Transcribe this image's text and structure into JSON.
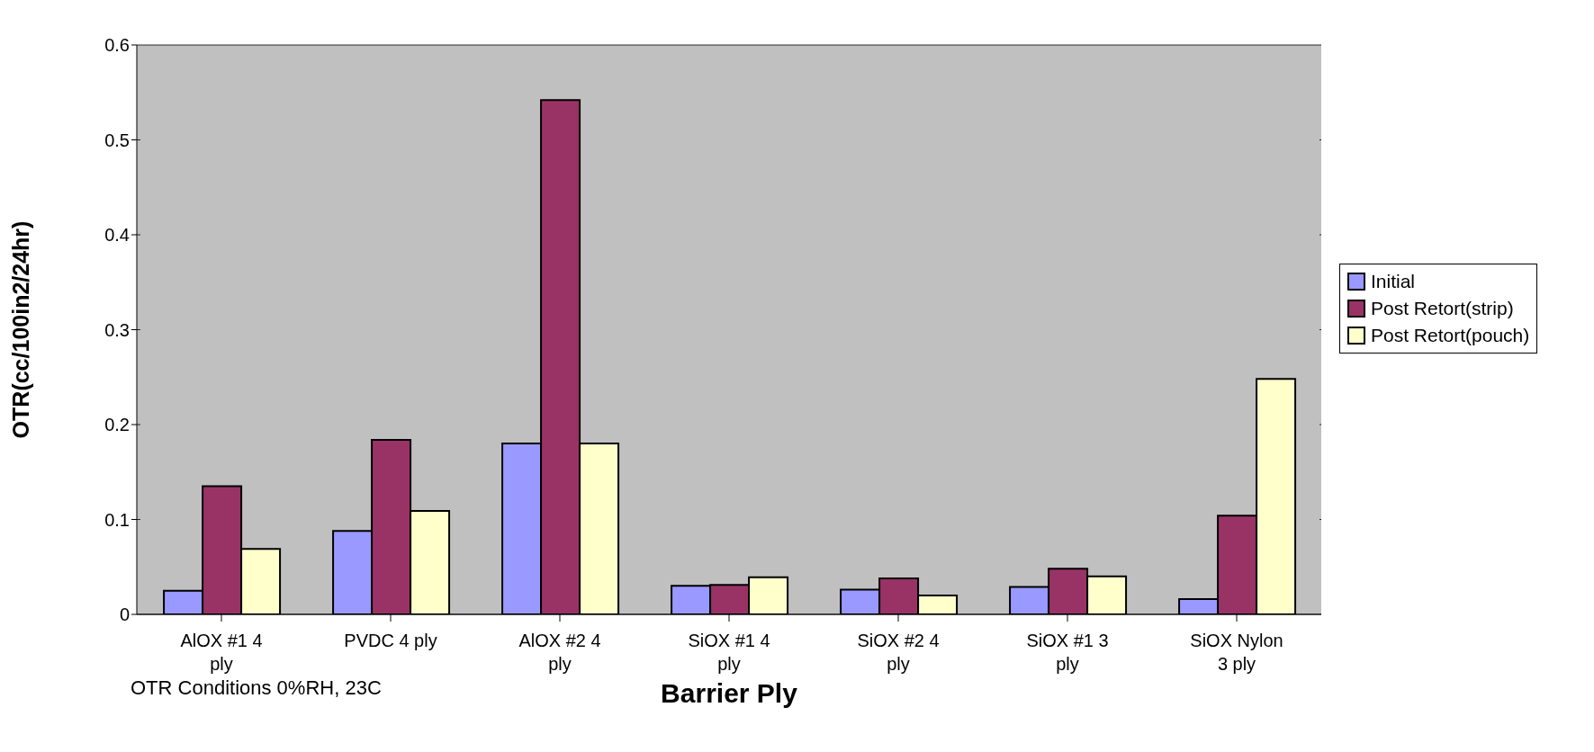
{
  "chart_data": {
    "type": "bar",
    "xlabel": "Barrier Ply",
    "ylabel": "OTR(cc/100in2/24hr)",
    "categories": [
      "AlOX #1 4 ply",
      "PVDC 4 ply",
      "AlOX #2 4 ply",
      "SiOX #1 4 ply",
      "SiOX #2 4 ply",
      "SiOX #1 3 ply",
      "SiOX Nylon 3 ply"
    ],
    "series": [
      {
        "name": "Initial",
        "color": "#9999ff",
        "values": [
          0.025,
          0.088,
          0.18,
          0.03,
          0.026,
          0.029,
          0.016
        ]
      },
      {
        "name": "Post Retort(strip)",
        "color": "#993366",
        "values": [
          0.135,
          0.184,
          0.542,
          0.031,
          0.038,
          0.048,
          0.104
        ]
      },
      {
        "name": "Post Retort(pouch)",
        "color": "#ffffcc",
        "values": [
          0.069,
          0.109,
          0.18,
          0.039,
          0.02,
          0.04,
          0.248
        ]
      }
    ],
    "ylim": [
      0,
      0.6
    ],
    "yticks": [
      0,
      0.1,
      0.2,
      0.3,
      0.4,
      0.5,
      0.6
    ],
    "grid": "y",
    "legend": "right",
    "annotations": [
      "OTR Conditions 0%RH, 23C"
    ]
  }
}
